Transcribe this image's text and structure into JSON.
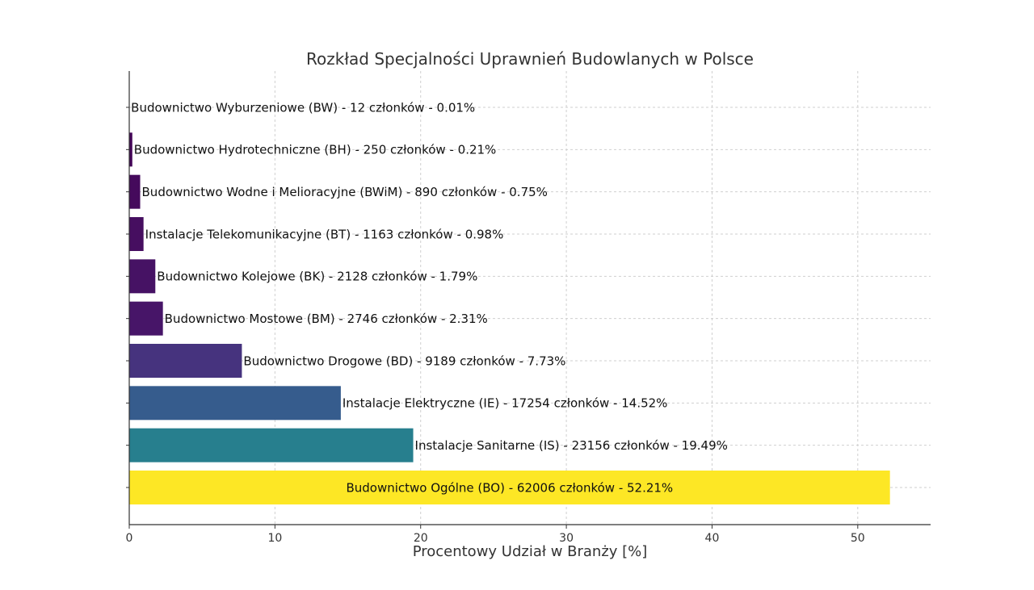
{
  "chart_data": {
    "type": "bar",
    "orientation": "horizontal",
    "title": "Rozkład Specjalności Uprawnień Budowlanych w Polsce",
    "xlabel": "Procentowy Udział w Branży [%]",
    "ylabel": "",
    "xlim": [
      0,
      55
    ],
    "xticks": [
      0,
      10,
      20,
      30,
      40,
      50
    ],
    "grid": true,
    "categories_top_to_bottom": [
      "Budownictwo Wyburzeniowe (BW) - 12 członków - 0.01%",
      "Budownictwo Hydrotechniczne (BH) - 250 członków - 0.21%",
      "Budownictwo Wodne i Melioracyjne (BWiM) - 890 członków - 0.75%",
      "Instalacje Telekomunikacyjne (BT) - 1163 członków - 0.98%",
      "Budownictwo Kolejowe (BK) - 2128 członków - 1.79%",
      "Budownictwo Mostowe (BM) - 2746 członków - 2.31%",
      "Budownictwo Drogowe (BD) - 9189 członków - 7.73%",
      "Instalacje Elektryczne (IE) - 17254 członków - 14.52%",
      "Instalacje Sanitarne (IS) - 23156 członków - 19.49%",
      "Budownictwo Ogólne (BO) - 62006 członków - 52.21%"
    ],
    "values": [
      0.01,
      0.21,
      0.75,
      0.98,
      1.79,
      2.31,
      7.73,
      14.52,
      19.49,
      52.21
    ],
    "colors": [
      "#440154",
      "#440558",
      "#450a5c",
      "#460e60",
      "#461264",
      "#471568",
      "#46337e",
      "#365c8d",
      "#277f8e",
      "#fde725"
    ]
  }
}
